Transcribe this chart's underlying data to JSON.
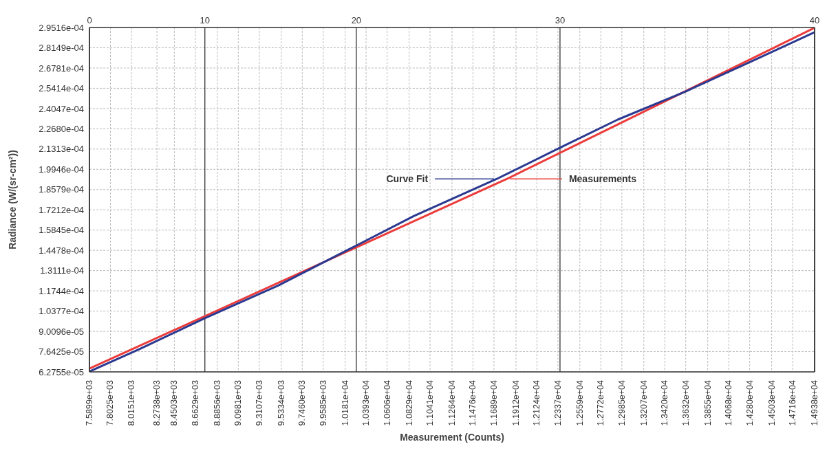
{
  "chart_data": {
    "type": "line",
    "xlabel": "Measurement (Counts)",
    "ylabel": "Radiance (W/(sr-cm²))",
    "xlim": [
      7589.9,
      14938
    ],
    "xticks": [
      {
        "value": 7589.9,
        "label": "7.5899e+03"
      },
      {
        "value": 7802.5,
        "label": "7.8025e+03"
      },
      {
        "value": 8015.1,
        "label": "8.0151e+03"
      },
      {
        "value": 8273.8,
        "label": "8.2738e+03"
      },
      {
        "value": 8450.3,
        "label": "8.4503e+03"
      },
      {
        "value": 8662.9,
        "label": "8.6629e+03"
      },
      {
        "value": 8885.6,
        "label": "8.8856e+03"
      },
      {
        "value": 9098.1,
        "label": "9.0981e+03"
      },
      {
        "value": 9310.7,
        "label": "9.3107e+03"
      },
      {
        "value": 9533.4,
        "label": "9.5334e+03"
      },
      {
        "value": 9746,
        "label": "9.7460e+03"
      },
      {
        "value": 9958.5,
        "label": "9.9585e+03"
      },
      {
        "value": 10181,
        "label": "1.0181e+04"
      },
      {
        "value": 10393,
        "label": "1.0393e+04"
      },
      {
        "value": 10606,
        "label": "1.0606e+04"
      },
      {
        "value": 10829,
        "label": "1.0829e+04"
      },
      {
        "value": 11041,
        "label": "1.1041e+04"
      },
      {
        "value": 11264,
        "label": "1.1264e+04"
      },
      {
        "value": 11476,
        "label": "1.1476e+04"
      },
      {
        "value": 11689,
        "label": "1.1689e+04"
      },
      {
        "value": 11912,
        "label": "1.1912e+04"
      },
      {
        "value": 12124,
        "label": "1.2124e+04"
      },
      {
        "value": 12337,
        "label": "1.2337e+04"
      },
      {
        "value": 12559,
        "label": "1.2559e+04"
      },
      {
        "value": 12772,
        "label": "1.2772e+04"
      },
      {
        "value": 12985,
        "label": "1.2985e+04"
      },
      {
        "value": 13207,
        "label": "1.3207e+04"
      },
      {
        "value": 13420,
        "label": "1.3420e+04"
      },
      {
        "value": 13632,
        "label": "1.3632e+04"
      },
      {
        "value": 13855,
        "label": "1.3855e+04"
      },
      {
        "value": 14068,
        "label": "1.4068e+04"
      },
      {
        "value": 14280,
        "label": "1.4280e+04"
      },
      {
        "value": 14503,
        "label": "1.4503e+04"
      },
      {
        "value": 14716,
        "label": "1.4716e+04"
      },
      {
        "value": 14938,
        "label": "1.4938e+04"
      }
    ],
    "ref_lines": [
      {
        "axis": "x",
        "value": 7589.9,
        "color": "#333333"
      },
      {
        "axis": "x",
        "value": 8759.5,
        "color": "#333333"
      },
      {
        "axis": "x",
        "value": 10294,
        "color": "#333333"
      },
      {
        "axis": "x",
        "value": 12358,
        "color": "#333333"
      },
      {
        "axis": "x",
        "value": 14938,
        "color": "#333333"
      }
    ],
    "annotations": [
      "0",
      "10",
      "20",
      "30",
      "40"
    ],
    "ylim": [
      6.2755e-05,
      0.00029516
    ],
    "yticks": [
      {
        "value": 6.2755e-05,
        "label": "6.2755e-05"
      },
      {
        "value": 7.6425e-05,
        "label": "7.6425e-05"
      },
      {
        "value": 9.0096e-05,
        "label": "9.0096e-05"
      },
      {
        "value": 0.00010377,
        "label": "1.0377e-04"
      },
      {
        "value": 0.00011744,
        "label": "1.1744e-04"
      },
      {
        "value": 0.00013111,
        "label": "1.3111e-04"
      },
      {
        "value": 0.00014478,
        "label": "1.4478e-04"
      },
      {
        "value": 0.00015845,
        "label": "1.5845e-04"
      },
      {
        "value": 0.00017212,
        "label": "1.7212e-04"
      },
      {
        "value": 0.00018579,
        "label": "1.8579e-04"
      },
      {
        "value": 0.00019946,
        "label": "1.9946e-04"
      },
      {
        "value": 0.00021313,
        "label": "2.1313e-04"
      },
      {
        "value": 0.0002268,
        "label": "2.2680e-04"
      },
      {
        "value": 0.00024047,
        "label": "2.4047e-04"
      },
      {
        "value": 0.00025414,
        "label": "2.5414e-04"
      },
      {
        "value": 0.00026781,
        "label": "2.6781e-04"
      },
      {
        "value": 0.00028149,
        "label": "2.8149e-04"
      },
      {
        "value": 0.00029516,
        "label": "2.9516e-04"
      }
    ],
    "grid": true,
    "marker": "none",
    "line_style": "solid",
    "series": [
      {
        "name": "Measurements",
        "color": "#ec3b3b",
        "x": [
          7589.9,
          11821,
          14938
        ],
        "values": [
          6.5e-05,
          0.000193,
          0.000295
        ]
      },
      {
        "name": "Curve Fit",
        "color": "#2b3990",
        "x": [
          7589.9,
          8126.5,
          8759.5,
          9502.6,
          10294,
          10879,
          11718,
          12358,
          12943,
          13631,
          14319,
          14938
        ],
        "values": [
          6.3e-05,
          7.9e-05,
          9.9e-05,
          0.000121,
          0.000148,
          0.000168,
          0.000193,
          0.000214,
          0.000233,
          0.000252,
          0.000273,
          0.000292
        ]
      }
    ]
  }
}
